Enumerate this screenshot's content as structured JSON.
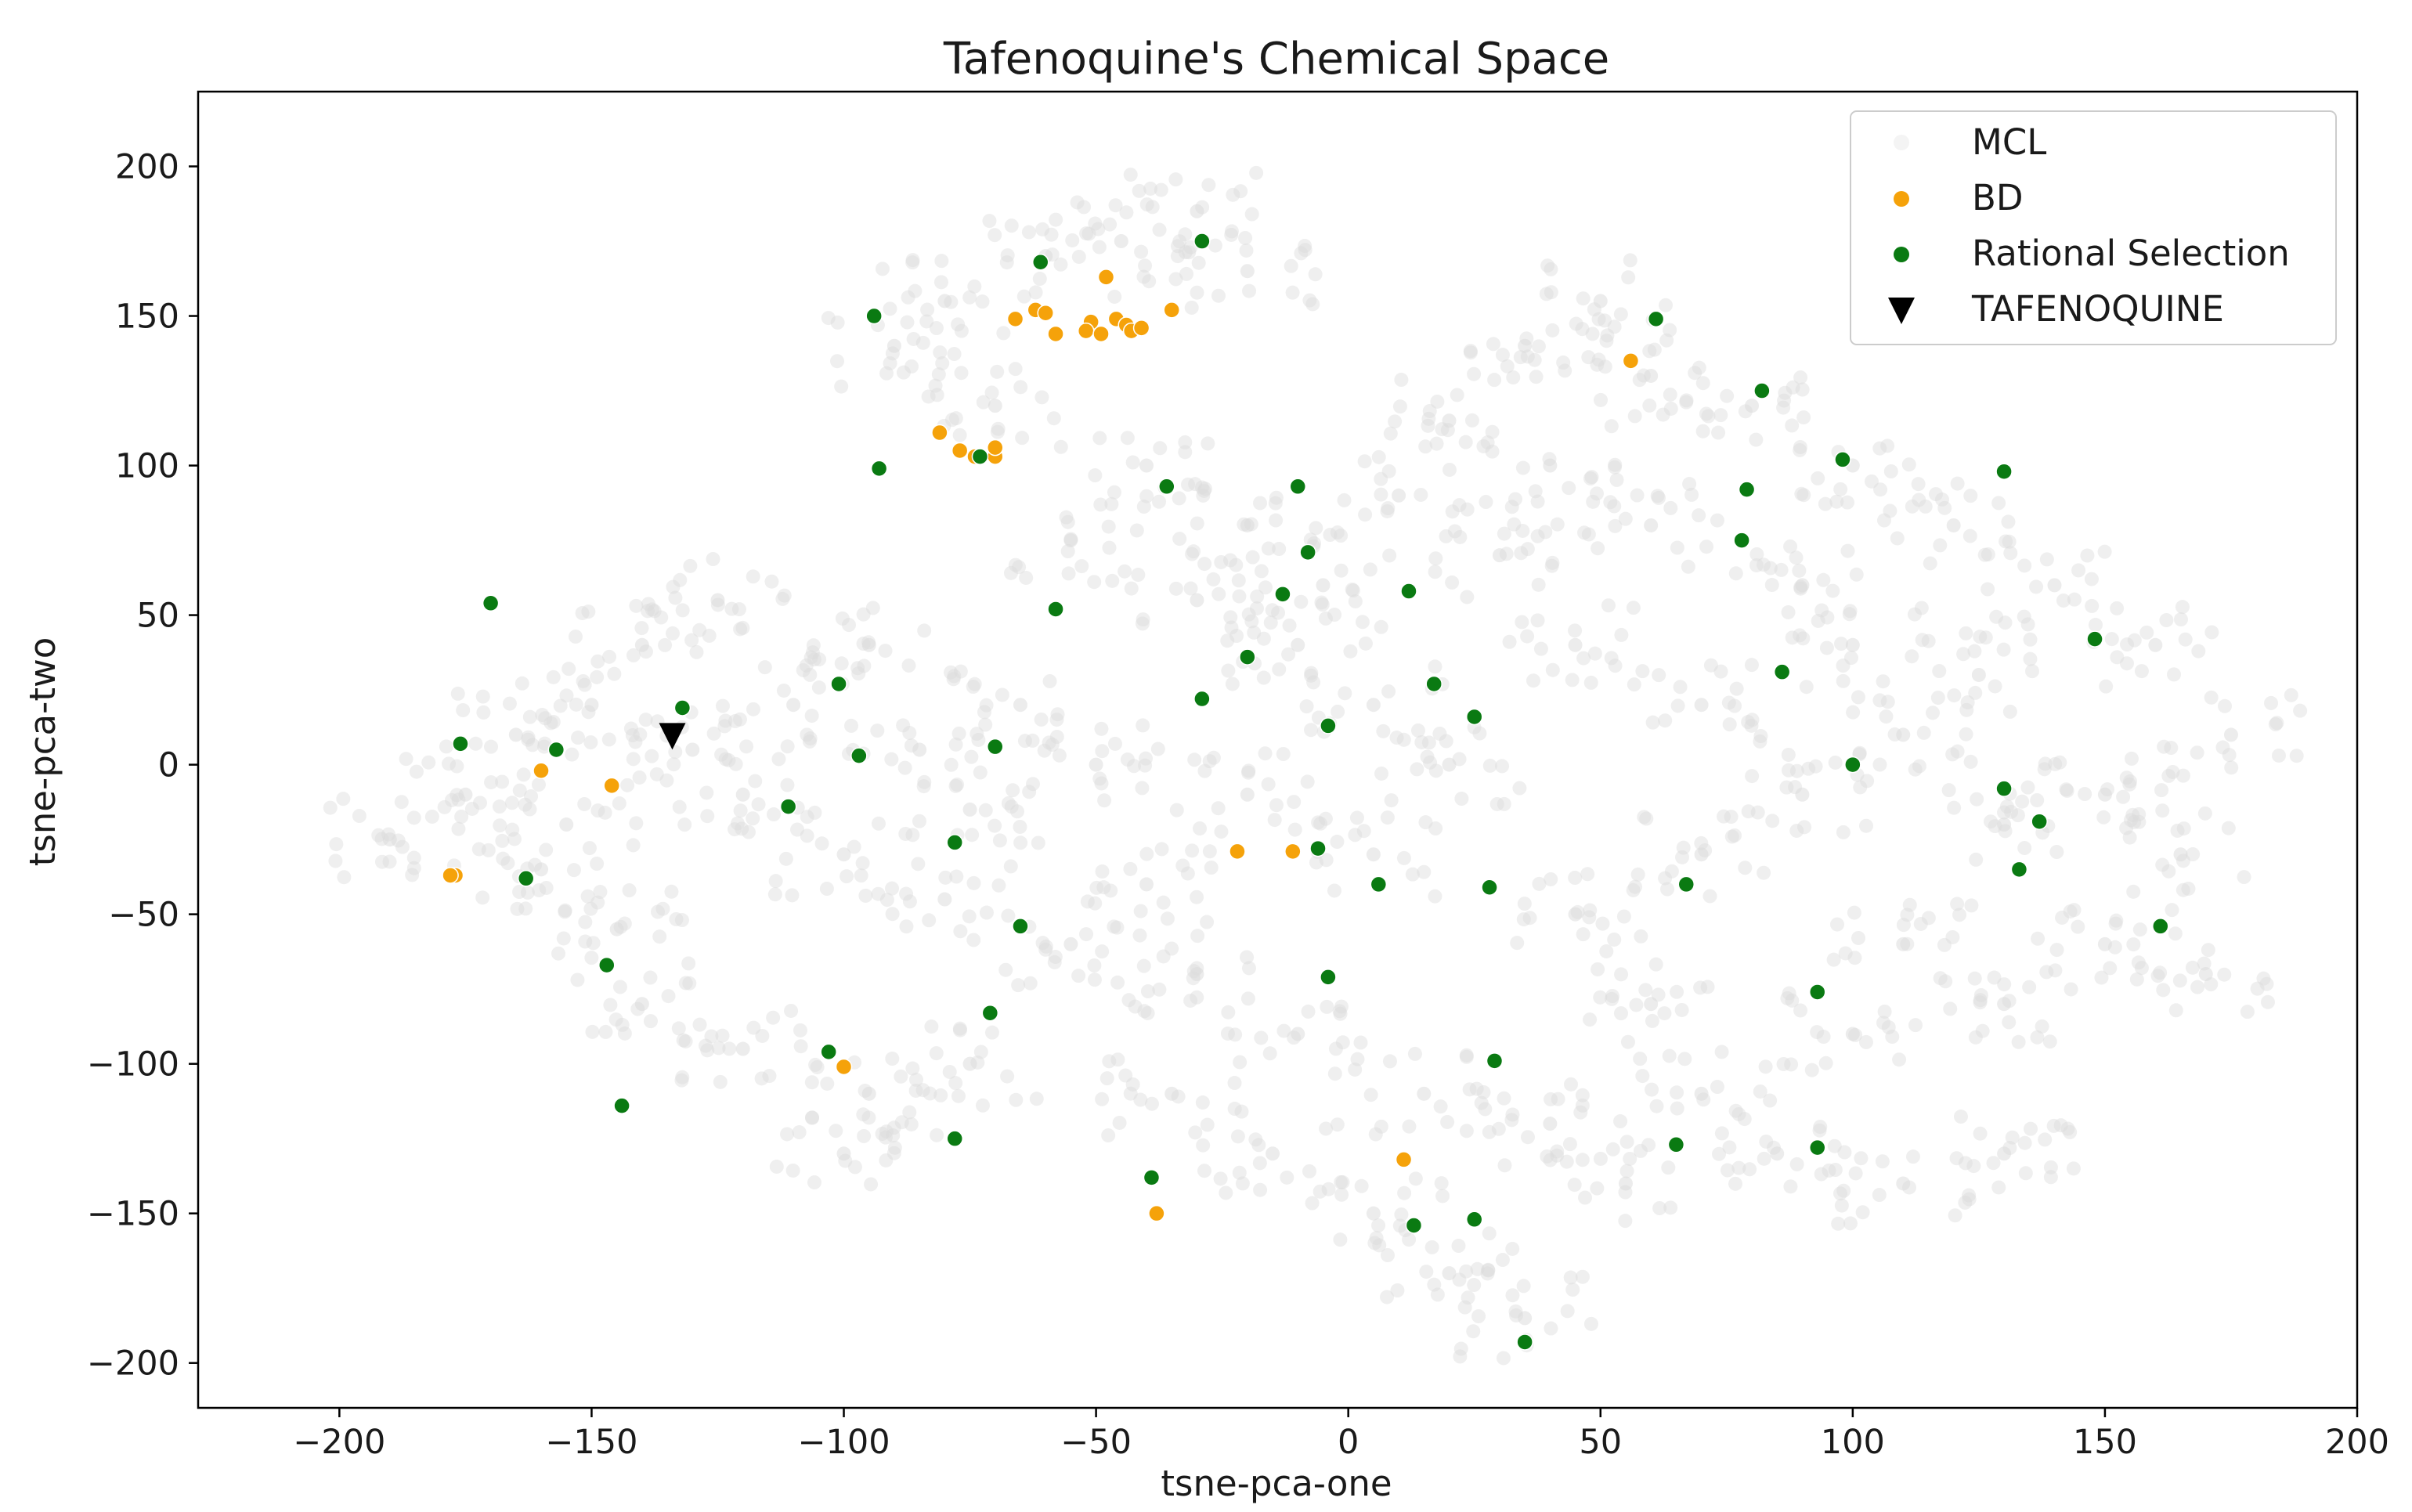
{
  "chart_data": {
    "type": "scatter",
    "title": "Tafenoquine's Chemical Space",
    "xlabel": "tsne-pca-one",
    "ylabel": "tsne-pca-two",
    "xlim": [
      -228,
      200
    ],
    "ylim": [
      -215,
      225
    ],
    "xticks": [
      -200,
      -150,
      -100,
      -50,
      0,
      50,
      100,
      150,
      200
    ],
    "xtick_labels": [
      "−200",
      "−150",
      "−100",
      "−50",
      "0",
      "50",
      "100",
      "150",
      "200"
    ],
    "yticks": [
      200,
      150,
      100,
      50,
      0,
      -50,
      -100,
      -150,
      -200
    ],
    "ytick_labels": [
      "200",
      "150",
      "100",
      "50",
      "0",
      "−50",
      "−100",
      "−150",
      "−200"
    ],
    "grid": false,
    "legend_position": "top-right",
    "series": [
      {
        "name": "MCL",
        "color": "#dcdcdc",
        "marker": "circle",
        "note_on_points": "thousands of faint background points; approximate cluster centers listed",
        "points": [
          [
            -190,
            -25
          ],
          [
            -175,
            -10
          ],
          [
            -165,
            10
          ],
          [
            -150,
            20
          ],
          [
            -140,
            40
          ],
          [
            -125,
            55
          ],
          [
            -160,
            -35
          ],
          [
            -145,
            -55
          ],
          [
            -120,
            -10
          ],
          [
            -110,
            20
          ],
          [
            -95,
            40
          ],
          [
            -85,
            5
          ],
          [
            -100,
            -30
          ],
          [
            -80,
            -45
          ],
          [
            -140,
            -80
          ],
          [
            -120,
            -95
          ],
          [
            -95,
            -110
          ],
          [
            -75,
            -100
          ],
          [
            -100,
            -130
          ],
          [
            -90,
            140
          ],
          [
            -80,
            155
          ],
          [
            -70,
            120
          ],
          [
            -60,
            170
          ],
          [
            -45,
            175
          ],
          [
            -30,
            185
          ],
          [
            -20,
            165
          ],
          [
            -40,
            100
          ],
          [
            -20,
            80
          ],
          [
            -55,
            75
          ],
          [
            -30,
            55
          ],
          [
            -10,
            40
          ],
          [
            5,
            20
          ],
          [
            -5,
            60
          ],
          [
            10,
            90
          ],
          [
            20,
            115
          ],
          [
            35,
            140
          ],
          [
            50,
            155
          ],
          [
            60,
            130
          ],
          [
            40,
            100
          ],
          [
            30,
            70
          ],
          [
            45,
            40
          ],
          [
            20,
            0
          ],
          [
            5,
            -30
          ],
          [
            -20,
            -10
          ],
          [
            -40,
            -40
          ],
          [
            -55,
            -60
          ],
          [
            -30,
            -70
          ],
          [
            -10,
            -90
          ],
          [
            -35,
            -110
          ],
          [
            -15,
            -130
          ],
          [
            5,
            -150
          ],
          [
            20,
            -170
          ],
          [
            35,
            -185
          ],
          [
            15,
            -110
          ],
          [
            40,
            -120
          ],
          [
            55,
            -140
          ],
          [
            70,
            -110
          ],
          [
            60,
            -80
          ],
          [
            45,
            -50
          ],
          [
            70,
            -30
          ],
          [
            90,
            -10
          ],
          [
            110,
            10
          ],
          [
            130,
            -20
          ],
          [
            150,
            -10
          ],
          [
            165,
            -30
          ],
          [
            175,
            10
          ],
          [
            160,
            40
          ],
          [
            140,
            60
          ],
          [
            120,
            80
          ],
          [
            100,
            100
          ],
          [
            80,
            120
          ],
          [
            90,
            60
          ],
          [
            70,
            20
          ],
          [
            110,
            -60
          ],
          [
            130,
            -80
          ],
          [
            150,
            -60
          ],
          [
            170,
            -70
          ],
          [
            100,
            -90
          ],
          [
            85,
            -130
          ],
          [
            110,
            -140
          ],
          [
            130,
            -130
          ],
          [
            -65,
            20
          ],
          [
            -50,
            0
          ],
          [
            -75,
            -15
          ],
          [
            -130,
            5
          ],
          [
            -155,
            -20
          ],
          [
            60,
            80
          ],
          [
            100,
            40
          ],
          [
            125,
            30
          ]
        ]
      },
      {
        "name": "BD",
        "color": "#f5a20a",
        "marker": "circle",
        "points": [
          [
            -48,
            163
          ],
          [
            -62,
            152
          ],
          [
            -60,
            151
          ],
          [
            -66,
            149
          ],
          [
            -58,
            144
          ],
          [
            -51,
            148
          ],
          [
            -52,
            145
          ],
          [
            -49,
            144
          ],
          [
            -46,
            149
          ],
          [
            -44,
            147
          ],
          [
            -43,
            145
          ],
          [
            -41,
            146
          ],
          [
            -35,
            152
          ],
          [
            -81,
            111
          ],
          [
            -77,
            105
          ],
          [
            -74,
            103
          ],
          [
            -70,
            103
          ],
          [
            -70,
            106
          ],
          [
            56,
            135
          ],
          [
            -160,
            -2
          ],
          [
            -146,
            -7
          ],
          [
            -177,
            -37
          ],
          [
            -178,
            -37
          ],
          [
            -22,
            -29
          ],
          [
            -11,
            -29
          ],
          [
            -100,
            -101
          ],
          [
            11,
            -132
          ],
          [
            -38,
            -150
          ]
        ]
      },
      {
        "name": "Rational Selection",
        "color": "#0a7a12",
        "marker": "circle",
        "points": [
          [
            -61,
            168
          ],
          [
            -29,
            175
          ],
          [
            -94,
            150
          ],
          [
            61,
            149
          ],
          [
            82,
            125
          ],
          [
            -93,
            99
          ],
          [
            -73,
            103
          ],
          [
            98,
            102
          ],
          [
            130,
            98
          ],
          [
            -36,
            93
          ],
          [
            -10,
            93
          ],
          [
            79,
            92
          ],
          [
            78,
            75
          ],
          [
            -8,
            71
          ],
          [
            -13,
            57
          ],
          [
            12,
            58
          ],
          [
            -170,
            54
          ],
          [
            -58,
            52
          ],
          [
            148,
            42
          ],
          [
            -20,
            36
          ],
          [
            -101,
            27
          ],
          [
            17,
            27
          ],
          [
            86,
            31
          ],
          [
            -132,
            19
          ],
          [
            -29,
            22
          ],
          [
            25,
            16
          ],
          [
            -4,
            13
          ],
          [
            -176,
            7
          ],
          [
            -157,
            5
          ],
          [
            -70,
            6
          ],
          [
            -97,
            3
          ],
          [
            100,
            0
          ],
          [
            130,
            -8
          ],
          [
            -111,
            -14
          ],
          [
            137,
            -19
          ],
          [
            -78,
            -26
          ],
          [
            -6,
            -28
          ],
          [
            -163,
            -38
          ],
          [
            133,
            -35
          ],
          [
            6,
            -40
          ],
          [
            28,
            -41
          ],
          [
            67,
            -40
          ],
          [
            -65,
            -54
          ],
          [
            161,
            -54
          ],
          [
            -147,
            -67
          ],
          [
            -4,
            -71
          ],
          [
            93,
            -76
          ],
          [
            -71,
            -83
          ],
          [
            -103,
            -96
          ],
          [
            29,
            -99
          ],
          [
            -144,
            -114
          ],
          [
            -78,
            -125
          ],
          [
            65,
            -127
          ],
          [
            93,
            -128
          ],
          [
            -39,
            -138
          ],
          [
            13,
            -154
          ],
          [
            25,
            -152
          ],
          [
            35,
            -193
          ]
        ]
      },
      {
        "name": "TAFENOQUINE",
        "color": "#000000",
        "marker": "triangle-down",
        "points": [
          [
            -134,
            10
          ]
        ]
      }
    ]
  },
  "legend": {
    "items": [
      {
        "label": "MCL",
        "color": "#f4f4f4"
      },
      {
        "label": "BD",
        "color": "#f5a20a"
      },
      {
        "label": "Rational Selection",
        "color": "#0a7a12"
      },
      {
        "label": "TAFENOQUINE",
        "color": "#000000"
      }
    ]
  }
}
